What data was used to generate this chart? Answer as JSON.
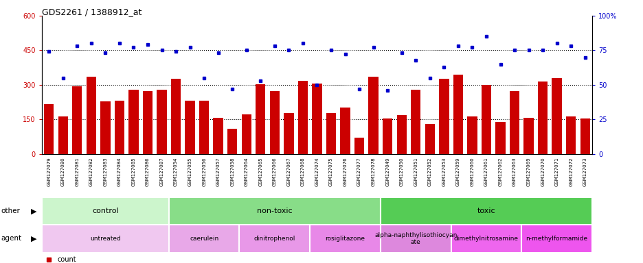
{
  "title": "GDS2261 / 1388912_at",
  "categories": [
    "GSM127079",
    "GSM127080",
    "GSM127081",
    "GSM127082",
    "GSM127083",
    "GSM127084",
    "GSM127085",
    "GSM127086",
    "GSM127087",
    "GSM127054",
    "GSM127055",
    "GSM127056",
    "GSM127057",
    "GSM127058",
    "GSM127064",
    "GSM127065",
    "GSM127066",
    "GSM127067",
    "GSM127068",
    "GSM127074",
    "GSM127075",
    "GSM127076",
    "GSM127077",
    "GSM127078",
    "GSM127049",
    "GSM127050",
    "GSM127051",
    "GSM127052",
    "GSM127053",
    "GSM127059",
    "GSM127060",
    "GSM127061",
    "GSM127062",
    "GSM127063",
    "GSM127069",
    "GSM127070",
    "GSM127071",
    "GSM127072",
    "GSM127073"
  ],
  "bar_values": [
    215,
    163,
    295,
    335,
    228,
    232,
    278,
    272,
    278,
    325,
    232,
    232,
    158,
    108,
    172,
    302,
    272,
    178,
    318,
    305,
    178,
    200,
    70,
    335,
    155,
    168,
    278,
    130,
    325,
    345,
    162,
    300,
    140,
    272,
    158,
    315,
    330,
    162,
    155
  ],
  "dot_values": [
    74,
    55,
    78,
    80,
    73,
    80,
    77,
    79,
    75,
    74,
    77,
    55,
    73,
    47,
    75,
    53,
    78,
    75,
    80,
    50,
    75,
    72,
    47,
    77,
    46,
    73,
    68,
    55,
    63,
    78,
    77,
    85,
    65,
    75,
    75,
    75,
    80,
    78,
    70
  ],
  "bar_color": "#cc0000",
  "dot_color": "#0000cc",
  "ylim_left": [
    0,
    600
  ],
  "ylim_right": [
    0,
    100
  ],
  "yticks_left": [
    0,
    150,
    300,
    450,
    600
  ],
  "yticks_right": [
    0,
    25,
    50,
    75,
    100
  ],
  "other_groups": [
    {
      "label": "control",
      "start": 0,
      "end": 9,
      "color": "#ccf5cc"
    },
    {
      "label": "non-toxic",
      "start": 9,
      "end": 24,
      "color": "#88dd88"
    },
    {
      "label": "toxic",
      "start": 24,
      "end": 39,
      "color": "#55cc55"
    }
  ],
  "agent_groups": [
    {
      "label": "untreated",
      "start": 0,
      "end": 9,
      "color": "#f0c8f0"
    },
    {
      "label": "caerulein",
      "start": 9,
      "end": 14,
      "color": "#e8a8e8"
    },
    {
      "label": "dinitrophenol",
      "start": 14,
      "end": 19,
      "color": "#e898e8"
    },
    {
      "label": "rosiglitazone",
      "start": 19,
      "end": 24,
      "color": "#e888e8"
    },
    {
      "label": "alpha-naphthylisothiocyan\nate",
      "start": 24,
      "end": 29,
      "color": "#dd88dd"
    },
    {
      "label": "dimethylnitrosamine",
      "start": 29,
      "end": 34,
      "color": "#ee66ee"
    },
    {
      "label": "n-methylformamide",
      "start": 34,
      "end": 39,
      "color": "#ee55ee"
    }
  ]
}
